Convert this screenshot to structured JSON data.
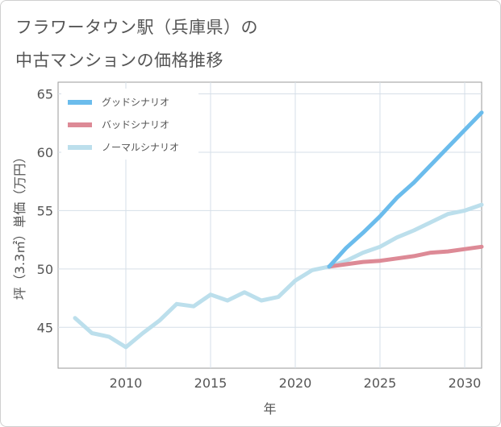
{
  "header": {
    "title_line1": "フラワータウン駅（兵庫県）の",
    "title_line2": "中古マンションの価格推移"
  },
  "chart_data": {
    "type": "line",
    "xlabel": "年",
    "ylabel": "坪（3.3㎡）単価（万円）",
    "xlim": [
      2006,
      2031
    ],
    "ylim": [
      41.5,
      66
    ],
    "x_ticks": [
      2010,
      2015,
      2020,
      2025,
      2030
    ],
    "y_ticks": [
      45,
      50,
      55,
      60,
      65
    ],
    "grid": true,
    "legend_position": "top-left",
    "series": [
      {
        "name": "グッドシナリオ",
        "color": "#6bbcec",
        "points": [
          [
            2022,
            50.2
          ],
          [
            2023,
            51.8
          ],
          [
            2024,
            53.1
          ],
          [
            2025,
            54.5
          ],
          [
            2026,
            56.1
          ],
          [
            2027,
            57.4
          ],
          [
            2028,
            58.9
          ],
          [
            2029,
            60.4
          ],
          [
            2030,
            61.9
          ],
          [
            2031,
            63.4
          ]
        ]
      },
      {
        "name": "バッドシナリオ",
        "color": "#dd8a96",
        "points": [
          [
            2022,
            50.2
          ],
          [
            2023,
            50.4
          ],
          [
            2024,
            50.6
          ],
          [
            2025,
            50.7
          ],
          [
            2026,
            50.9
          ],
          [
            2027,
            51.1
          ],
          [
            2028,
            51.4
          ],
          [
            2029,
            51.5
          ],
          [
            2030,
            51.7
          ],
          [
            2031,
            51.9
          ]
        ]
      },
      {
        "name": "ノーマルシナリオ",
        "color": "#bcdfec",
        "points": [
          [
            2007,
            45.8
          ],
          [
            2008,
            44.5
          ],
          [
            2009,
            44.2
          ],
          [
            2010,
            43.3
          ],
          [
            2011,
            44.5
          ],
          [
            2012,
            45.6
          ],
          [
            2013,
            47.0
          ],
          [
            2014,
            46.8
          ],
          [
            2015,
            47.8
          ],
          [
            2016,
            47.3
          ],
          [
            2017,
            48.0
          ],
          [
            2018,
            47.3
          ],
          [
            2019,
            47.6
          ],
          [
            2020,
            49.0
          ],
          [
            2021,
            49.9
          ],
          [
            2022,
            50.2
          ],
          [
            2023,
            50.7
          ],
          [
            2024,
            51.4
          ],
          [
            2025,
            51.9
          ],
          [
            2026,
            52.7
          ],
          [
            2027,
            53.3
          ],
          [
            2028,
            54.0
          ],
          [
            2029,
            54.7
          ],
          [
            2030,
            55.0
          ],
          [
            2031,
            55.5
          ]
        ]
      }
    ]
  }
}
